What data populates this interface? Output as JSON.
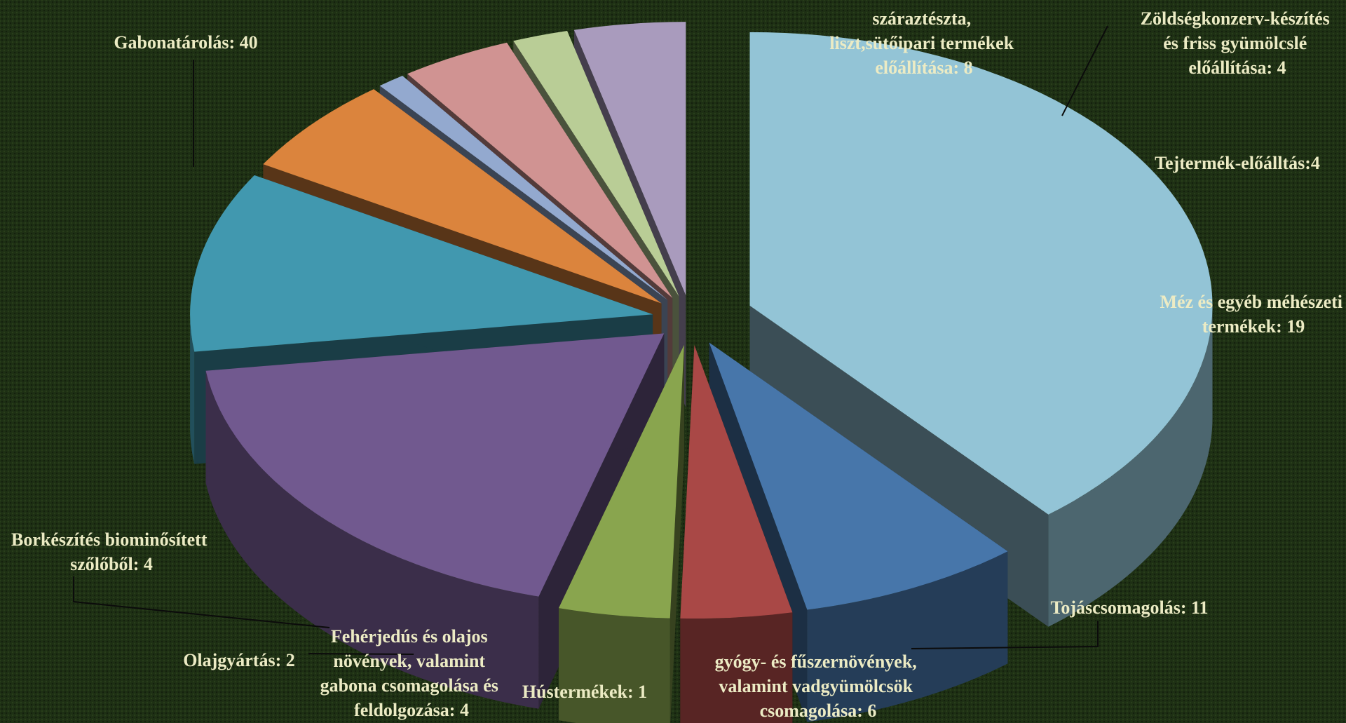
{
  "chart_data": {
    "type": "pie",
    "style": "3d-exploded",
    "slices": [
      {
        "label": "Gabonatárolás: 40",
        "value": 40,
        "color": "#93c4d6"
      },
      {
        "label": "száraztészta, liszt,sütőipari termékek előállítása: 8",
        "value": 8,
        "color": "#4776aa"
      },
      {
        "label": "Zöldségkonzerv-készítés és friss gyümölcslé előállítása: 4",
        "value": 4,
        "color": "#a94846"
      },
      {
        "label": "Tejtermék-előálltás:4",
        "value": 4,
        "color": "#89a54e"
      },
      {
        "label": "Méz és egyéb méhészeti termékek: 19",
        "value": 19,
        "color": "#71598f"
      },
      {
        "label": "Tojáscsomagolás: 11",
        "value": 11,
        "color": "#4198af"
      },
      {
        "label": "gyógy- és fűszernövények, valamint vadgyümölcsök csomagolása: 6",
        "value": 6,
        "color": "#db843d"
      },
      {
        "label": "Hústermékek: 1",
        "value": 1,
        "color": "#93a9cf"
      },
      {
        "label": "Fehérjedús és olajos növények, valamint gabona csomagolása és feldolgozása: 4",
        "value": 4,
        "color": "#d09392"
      },
      {
        "label": "Olajgyártás: 2",
        "value": 2,
        "color": "#b9cd96"
      },
      {
        "label": "Borkészítés biominősített szőlőből: 4",
        "value": 4,
        "color": "#a99bbd"
      }
    ]
  }
}
